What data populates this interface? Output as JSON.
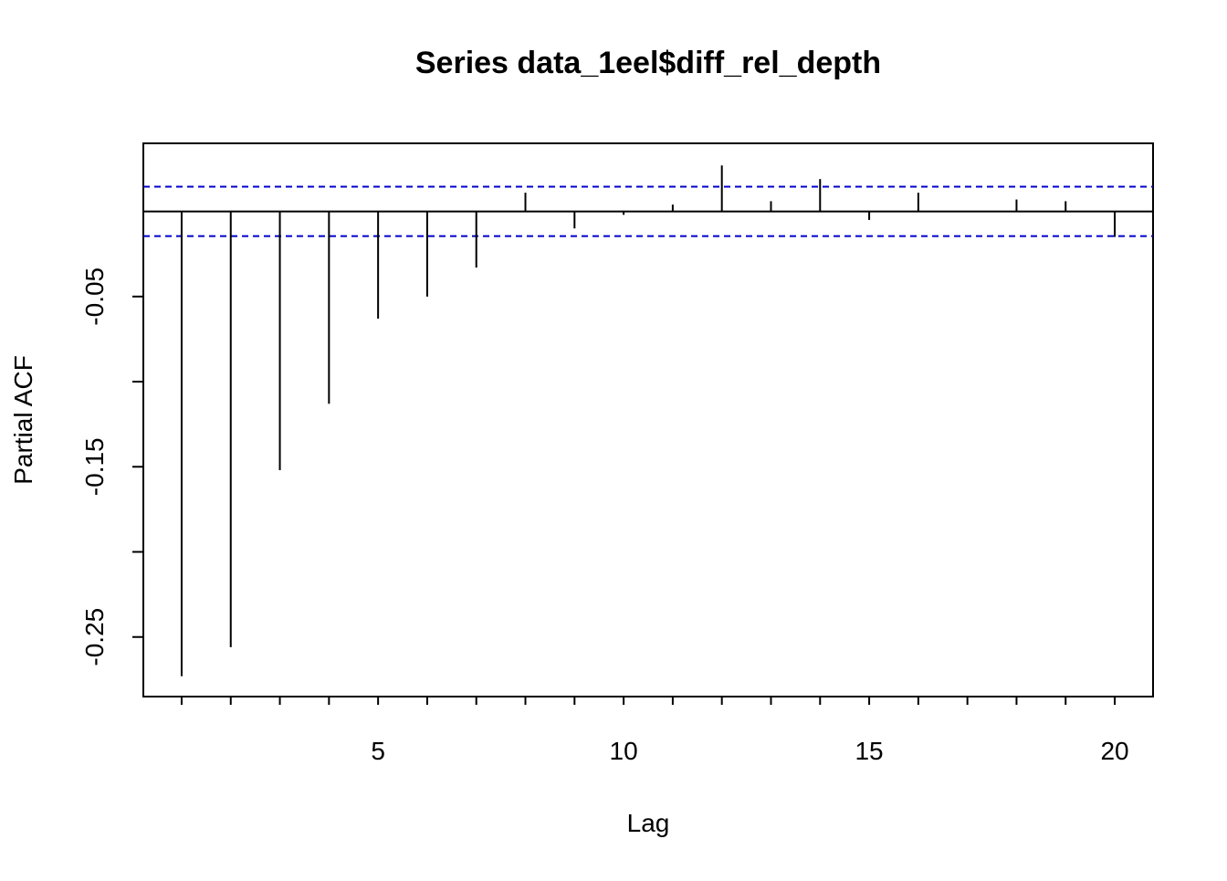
{
  "chart_data": {
    "type": "bar",
    "title": "Series  data_1eel$diff_rel_depth",
    "xlabel": "Lag",
    "ylabel": "Partial ACF",
    "xlim": [
      0.22,
      20.78
    ],
    "ylim": [
      -0.285,
      0.04
    ],
    "x_ticks": [
      1,
      2,
      3,
      4,
      5,
      6,
      7,
      8,
      9,
      10,
      11,
      12,
      13,
      14,
      15,
      16,
      17,
      18,
      19,
      20
    ],
    "x_tick_labels": [
      "5",
      "10",
      "15",
      "20"
    ],
    "x_tick_label_values": [
      5,
      10,
      15,
      20
    ],
    "y_ticks": [
      -0.25,
      -0.2,
      -0.15,
      -0.1,
      -0.05
    ],
    "y_tick_labels": [
      "-0.25",
      "-0.15",
      "-0.05"
    ],
    "y_tick_label_values": [
      -0.25,
      -0.15,
      -0.05
    ],
    "zero_line": 0,
    "confidence_bounds": [
      0.0145,
      -0.0145
    ],
    "confidence_color": "#0000cc",
    "bar_color": "#000000",
    "lags": [
      1,
      2,
      3,
      4,
      5,
      6,
      7,
      8,
      9,
      10,
      11,
      12,
      13,
      14,
      15,
      16,
      17,
      18,
      19,
      20
    ],
    "values": [
      -0.273,
      -0.256,
      -0.152,
      -0.113,
      -0.063,
      -0.05,
      -0.033,
      0.011,
      -0.01,
      -0.002,
      0.004,
      0.027,
      0.006,
      0.019,
      -0.005,
      0.011,
      0.0,
      0.007,
      0.006,
      -0.015
    ],
    "grid": false,
    "legend": "none"
  }
}
